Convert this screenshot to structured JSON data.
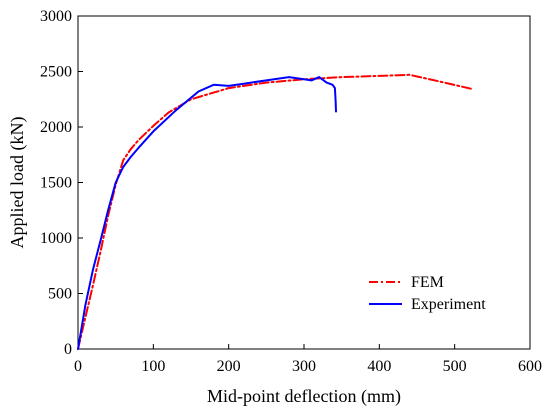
{
  "chart_data": {
    "type": "line",
    "title": "",
    "xlabel": "Mid-point deflection (mm)",
    "ylabel": "Applied load (kN)",
    "xlim": [
      0,
      600
    ],
    "ylim": [
      0,
      3000
    ],
    "xticks": [
      0,
      100,
      200,
      300,
      400,
      500,
      600
    ],
    "yticks": [
      0,
      500,
      1000,
      1500,
      2000,
      2500,
      3000
    ],
    "grid": false,
    "legend_position": "bottom-right",
    "series": [
      {
        "name": "FEM",
        "color": "#ff0000",
        "line_style": "dash-dot",
        "x": [
          0,
          10,
          20,
          30,
          40,
          50,
          60,
          70,
          80,
          100,
          120,
          150,
          180,
          200,
          250,
          300,
          350,
          400,
          440,
          480,
          525
        ],
        "y": [
          0,
          290,
          580,
          880,
          1200,
          1480,
          1700,
          1800,
          1880,
          2010,
          2130,
          2250,
          2310,
          2350,
          2400,
          2430,
          2450,
          2460,
          2470,
          2410,
          2340
        ]
      },
      {
        "name": "Experiment",
        "color": "#0000ff",
        "line_style": "solid",
        "x": [
          0,
          10,
          20,
          30,
          40,
          50,
          60,
          70,
          80,
          100,
          130,
          160,
          180,
          200,
          220,
          250,
          280,
          300,
          310,
          320,
          330,
          338,
          341,
          342,
          342.5
        ],
        "y": [
          0,
          400,
          720,
          980,
          1250,
          1500,
          1640,
          1730,
          1810,
          1960,
          2150,
          2320,
          2380,
          2370,
          2390,
          2420,
          2450,
          2430,
          2420,
          2450,
          2400,
          2380,
          2350,
          2240,
          2140
        ]
      }
    ]
  }
}
